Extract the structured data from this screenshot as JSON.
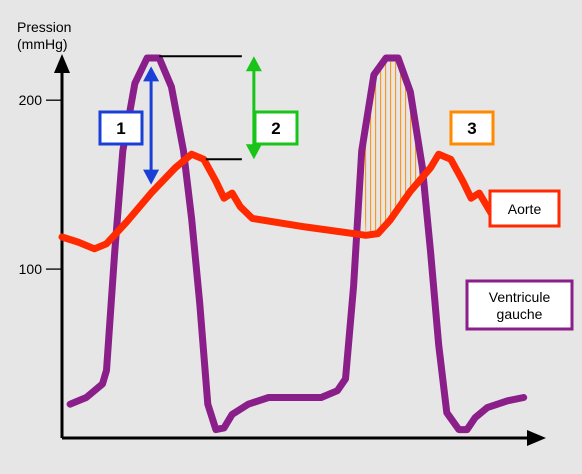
{
  "chart_data": {
    "type": "line",
    "ylabel": "Pression\n(mmHg)",
    "yticks": [
      100,
      200
    ],
    "ylim": [
      0,
      238
    ],
    "grid": false,
    "x_axis_labels": false,
    "series": [
      {
        "name": "Aorte",
        "color": "#ff2a00",
        "points": [
          [
            0.0,
            119
          ],
          [
            0.04,
            116
          ],
          [
            0.08,
            112
          ],
          [
            0.11,
            115
          ],
          [
            0.16,
            128
          ],
          [
            0.22,
            145
          ],
          [
            0.28,
            160
          ],
          [
            0.32,
            168
          ],
          [
            0.35,
            165
          ],
          [
            0.38,
            152
          ],
          [
            0.4,
            142
          ],
          [
            0.42,
            145
          ],
          [
            0.44,
            137
          ],
          [
            0.47,
            130
          ],
          [
            0.6,
            125
          ],
          [
            0.75,
            120
          ],
          [
            0.78,
            121
          ],
          [
            0.81,
            129
          ],
          [
            0.86,
            146
          ],
          [
            0.91,
            160
          ],
          [
            0.93,
            168
          ],
          [
            0.96,
            165
          ],
          [
            0.99,
            152
          ],
          [
            1.01,
            142
          ],
          [
            1.03,
            145
          ],
          [
            1.06,
            133
          ],
          [
            1.1,
            129
          ],
          [
            1.18,
            127
          ]
        ]
      },
      {
        "name": "Ventricule gauche",
        "color": "#8a1f8a",
        "points": [
          [
            0.02,
            20
          ],
          [
            0.06,
            24
          ],
          [
            0.1,
            32
          ],
          [
            0.11,
            40
          ],
          [
            0.13,
            110
          ],
          [
            0.15,
            170
          ],
          [
            0.18,
            210
          ],
          [
            0.21,
            225
          ],
          [
            0.24,
            225
          ],
          [
            0.27,
            208
          ],
          [
            0.3,
            170
          ],
          [
            0.32,
            130
          ],
          [
            0.34,
            80
          ],
          [
            0.36,
            20
          ],
          [
            0.38,
            5
          ],
          [
            0.4,
            6
          ],
          [
            0.42,
            14
          ],
          [
            0.46,
            20
          ],
          [
            0.51,
            24
          ],
          [
            0.64,
            24
          ],
          [
            0.68,
            28
          ],
          [
            0.7,
            35
          ],
          [
            0.72,
            90
          ],
          [
            0.74,
            170
          ],
          [
            0.77,
            215
          ],
          [
            0.8,
            225
          ],
          [
            0.83,
            225
          ],
          [
            0.86,
            205
          ],
          [
            0.89,
            160
          ],
          [
            0.91,
            110
          ],
          [
            0.93,
            55
          ],
          [
            0.95,
            15
          ],
          [
            0.98,
            5
          ],
          [
            1.0,
            5
          ],
          [
            1.02,
            12
          ],
          [
            1.05,
            18
          ],
          [
            1.1,
            22
          ],
          [
            1.14,
            24
          ]
        ]
      }
    ],
    "annotations": [
      {
        "label": "1",
        "color": "#1a3fd6",
        "kind": "double-arrow",
        "x": 0.22,
        "y": [
          150,
          220
        ]
      },
      {
        "label": "2",
        "color": "#18c418",
        "kind": "double-arrow",
        "x": 0.375,
        "y": [
          165,
          226
        ],
        "bracket_x": [
          0.24,
          0.37
        ]
      },
      {
        "label": "3",
        "color": "#ff8a00",
        "kind": "hatched-region",
        "x_range": [
          0.725,
          0.905
        ]
      }
    ],
    "legend": [
      {
        "label": "Aorte",
        "color": "#ff2a00"
      },
      {
        "label": "Ventricule\ngauche",
        "color": "#8a1f8a"
      }
    ]
  }
}
